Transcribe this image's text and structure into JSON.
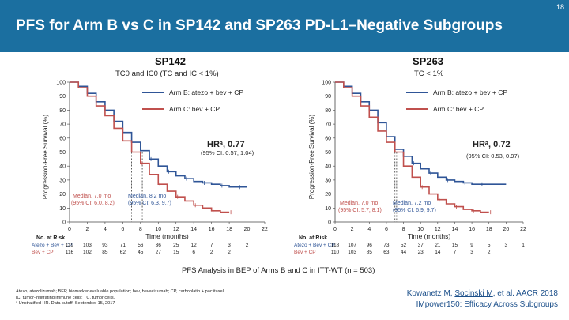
{
  "slide_number": "18",
  "title": "PFS for Arm B vs C in SP142 and SP263 PD-L1–Negative Subgroups",
  "legend": {
    "arm_b": "Arm B: atezo + bev + CP",
    "arm_c": "Arm C: bev + CP"
  },
  "colors": {
    "arm_b": "#2f5597",
    "arm_c": "#c0504d",
    "header": "#1b6fa0"
  },
  "footnote_center": "PFS Analysis in BEP of Arms B and C in ITT-WT (n = 503)",
  "abbreviations": [
    "Atezo, atezolizumab; BEP, biomarker evaluable population; bev, bevacizumab; CP, carboplatin + paclitaxel;",
    "IC, tumor-infiltrating immune cells; TC, tumor cells.",
    "ᵃ Unstratified HR. Data cutoff: September 15, 2017"
  ],
  "reference": {
    "authors_a": "Kowanetz M, ",
    "authors_b": "Socinski M",
    "authors_c": ", et al. AACR 2018",
    "study": "IMpower150: Efficacy Across Subgroups"
  },
  "chart_data": [
    {
      "type": "line",
      "title": "SP142",
      "subtitle": "TC0 and IC0 (TC and IC < 1%)",
      "ylabel": "Progression-Free Survival (%)",
      "xlabel": "Time (months)",
      "xlim": [
        0,
        22
      ],
      "ylim": [
        0,
        100
      ],
      "xticks": [
        0,
        2,
        4,
        6,
        8,
        10,
        12,
        14,
        16,
        18,
        20,
        22
      ],
      "yticks": [
        0,
        10,
        20,
        30,
        40,
        50,
        60,
        70,
        80,
        90,
        100
      ],
      "hr_text": "HRᵃ, 0.77",
      "ci_text": "(95% CI: 0.57, 1.04)",
      "median_b": [
        "Median, 8.2 mo",
        "(95% CI: 6.3, 9.7)"
      ],
      "median_c": [
        "Median, 7.0 mo",
        "(95% CI: 6.0, 8.2)"
      ],
      "median_x_b": 8.2,
      "median_x_c": 7.0,
      "series": [
        {
          "name": "Arm B: atezo + bev + CP",
          "x": [
            0,
            1,
            2,
            3,
            4,
            5,
            6,
            7,
            8,
            9,
            10,
            11,
            12,
            13,
            14,
            15,
            16,
            17,
            18,
            19,
            20
          ],
          "y": [
            100,
            97,
            92,
            86,
            80,
            72,
            64,
            57,
            51,
            45,
            40,
            36,
            33,
            31,
            29,
            28,
            27,
            26,
            25,
            25,
            25
          ]
        },
        {
          "name": "Arm C: bev + CP",
          "x": [
            0,
            1,
            2,
            3,
            4,
            5,
            6,
            7,
            8,
            9,
            10,
            11,
            12,
            13,
            14,
            15,
            16,
            17,
            18
          ],
          "y": [
            100,
            96,
            90,
            83,
            76,
            67,
            58,
            50,
            42,
            34,
            27,
            22,
            18,
            15,
            12,
            10,
            8,
            7,
            7
          ]
        }
      ],
      "at_risk_title": "No. at Risk",
      "at_risk": [
        {
          "label": "Atezo + Bev + CP",
          "values": [
            "119",
            "103",
            "93",
            "71",
            "56",
            "36",
            "25",
            "12",
            "7",
            "3",
            "2",
            ""
          ]
        },
        {
          "label": "Bev + CP",
          "values": [
            "116",
            "102",
            "85",
            "62",
            "45",
            "27",
            "15",
            "6",
            "2",
            "2",
            "",
            ""
          ]
        }
      ]
    },
    {
      "type": "line",
      "title": "SP263",
      "subtitle": "TC < 1%",
      "ylabel": "Progression-Free Survival (%)",
      "xlabel": "Time (months)",
      "xlim": [
        0,
        22
      ],
      "ylim": [
        0,
        100
      ],
      "xticks": [
        0,
        2,
        4,
        6,
        8,
        10,
        12,
        14,
        16,
        18,
        20,
        22
      ],
      "yticks": [
        0,
        10,
        20,
        30,
        40,
        50,
        60,
        70,
        80,
        90,
        100
      ],
      "hr_text": "HRᵃ, 0.72",
      "ci_text": "(95% CI: 0.53, 0.97)",
      "median_b": [
        "Median, 7.2 mo",
        "(95% CI: 6.9, 9.7)"
      ],
      "median_c": [
        "Median, 7.0 mo",
        "(95% CI: 5.7, 8.1)"
      ],
      "median_x_b": 7.2,
      "median_x_c": 7.0,
      "series": [
        {
          "name": "Arm B: atezo + bev + CP",
          "x": [
            0,
            1,
            2,
            3,
            4,
            5,
            6,
            7,
            8,
            9,
            10,
            11,
            12,
            13,
            14,
            15,
            16,
            17,
            18,
            19,
            20
          ],
          "y": [
            100,
            97,
            92,
            86,
            80,
            71,
            61,
            52,
            47,
            42,
            38,
            35,
            32,
            30,
            29,
            28,
            27,
            27,
            27,
            27,
            27
          ]
        },
        {
          "name": "Arm C: bev + CP",
          "x": [
            0,
            1,
            2,
            3,
            4,
            5,
            6,
            7,
            8,
            9,
            10,
            11,
            12,
            13,
            14,
            15,
            16,
            17,
            18
          ],
          "y": [
            100,
            96,
            90,
            83,
            75,
            65,
            57,
            50,
            40,
            32,
            25,
            20,
            16,
            13,
            11,
            9,
            8,
            7,
            7
          ]
        }
      ],
      "at_risk_title": "No. at Risk",
      "at_risk": [
        {
          "label": "Atezo + Bev + CP",
          "values": [
            "118",
            "107",
            "96",
            "73",
            "52",
            "37",
            "21",
            "15",
            "9",
            "5",
            "3",
            "1"
          ]
        },
        {
          "label": "Bev + CP",
          "values": [
            "110",
            "103",
            "85",
            "63",
            "44",
            "23",
            "14",
            "7",
            "3",
            "2",
            "",
            ""
          ]
        }
      ]
    }
  ]
}
